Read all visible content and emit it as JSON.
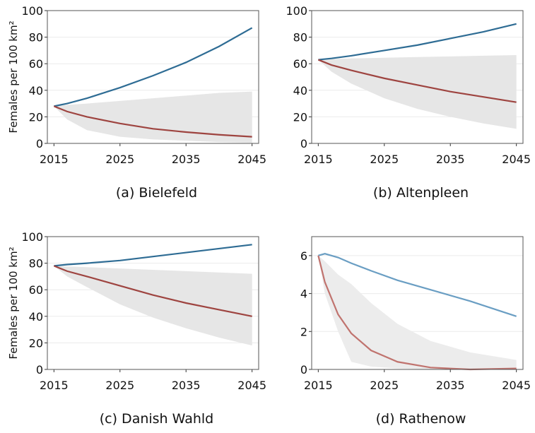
{
  "chart_data": [
    {
      "type": "line",
      "caption": "(a) Bielefeld",
      "y_label": "Females per 100 km²",
      "x": [
        2015,
        2017,
        2020,
        2025,
        2030,
        2035,
        2040,
        2045
      ],
      "xlim": [
        2014,
        2046
      ],
      "xticks": [
        2015,
        2025,
        2035,
        2045
      ],
      "ylim": [
        0,
        100
      ],
      "yticks": [
        0,
        20,
        40,
        60,
        80,
        100
      ],
      "grid": true,
      "band": {
        "color": "#e6e6e6",
        "lower": [
          28,
          18,
          10,
          5,
          3,
          2,
          1,
          0.5
        ],
        "upper": [
          28,
          29,
          30,
          32,
          34,
          36,
          38,
          39
        ]
      },
      "series": [
        {
          "color": "#2e6c94",
          "values": [
            28,
            30,
            34,
            42,
            51,
            61,
            73,
            87
          ]
        },
        {
          "color": "#9e4440",
          "values": [
            28,
            24,
            20,
            15,
            11,
            8.5,
            6.5,
            5
          ]
        }
      ]
    },
    {
      "type": "line",
      "caption": "(b) Altenpleen",
      "x": [
        2015,
        2017,
        2020,
        2025,
        2030,
        2035,
        2040,
        2045
      ],
      "xlim": [
        2014,
        2046
      ],
      "xticks": [
        2015,
        2025,
        2035,
        2045
      ],
      "ylim": [
        0,
        100
      ],
      "yticks": [
        0,
        20,
        40,
        60,
        80,
        100
      ],
      "grid": true,
      "band": {
        "color": "#e6e6e6",
        "lower": [
          63,
          54,
          45,
          34,
          26,
          20,
          15,
          11
        ],
        "upper": [
          63,
          63.5,
          64,
          64.5,
          65,
          65.5,
          66,
          66.5
        ]
      },
      "series": [
        {
          "color": "#2e6c94",
          "values": [
            63,
            64,
            66,
            70,
            74,
            79,
            84,
            90
          ]
        },
        {
          "color": "#9e4440",
          "values": [
            63,
            59,
            55,
            49,
            44,
            39,
            35,
            31
          ]
        }
      ]
    },
    {
      "type": "line",
      "caption": "(c) Danish Wahld",
      "y_label": "Females per 100 km²",
      "x": [
        2015,
        2017,
        2020,
        2025,
        2030,
        2035,
        2040,
        2045
      ],
      "xlim": [
        2014,
        2046
      ],
      "xticks": [
        2015,
        2025,
        2035,
        2045
      ],
      "ylim": [
        0,
        100
      ],
      "yticks": [
        0,
        20,
        40,
        60,
        80,
        100
      ],
      "grid": true,
      "band": {
        "color": "#e6e6e6",
        "lower": [
          78,
          70,
          62,
          49,
          39,
          31,
          24,
          18
        ],
        "upper": [
          78,
          77.5,
          77,
          76,
          75,
          74,
          73,
          72
        ]
      },
      "series": [
        {
          "color": "#2e6c94",
          "values": [
            78,
            79,
            80,
            82,
            85,
            88,
            91,
            94
          ]
        },
        {
          "color": "#9e4440",
          "values": [
            78,
            74,
            70,
            63,
            56,
            50,
            45,
            40
          ]
        }
      ]
    },
    {
      "type": "line",
      "caption": "(d) Rathenow",
      "x": [
        2015,
        2016,
        2018,
        2020,
        2023,
        2027,
        2032,
        2038,
        2045
      ],
      "xlim": [
        2014,
        2046
      ],
      "xticks": [
        2015,
        2025,
        2035,
        2045
      ],
      "ylim": [
        0,
        7
      ],
      "yticks": [
        0,
        2,
        4,
        6
      ],
      "grid": true,
      "band": {
        "color": "#ececec",
        "lower": [
          6,
          4,
          2,
          0.4,
          0.15,
          0.05,
          0,
          0,
          0
        ],
        "upper": [
          6,
          5.7,
          5,
          4.5,
          3.5,
          2.4,
          1.5,
          0.9,
          0.5
        ]
      },
      "series": [
        {
          "color": "#6a9ec3",
          "values": [
            6,
            6.1,
            5.9,
            5.6,
            5.2,
            4.7,
            4.2,
            3.6,
            2.8
          ]
        },
        {
          "color": "#c0736e",
          "values": [
            6,
            4.6,
            2.9,
            1.9,
            1.0,
            0.4,
            0.1,
            0,
            0.05
          ]
        }
      ]
    }
  ]
}
